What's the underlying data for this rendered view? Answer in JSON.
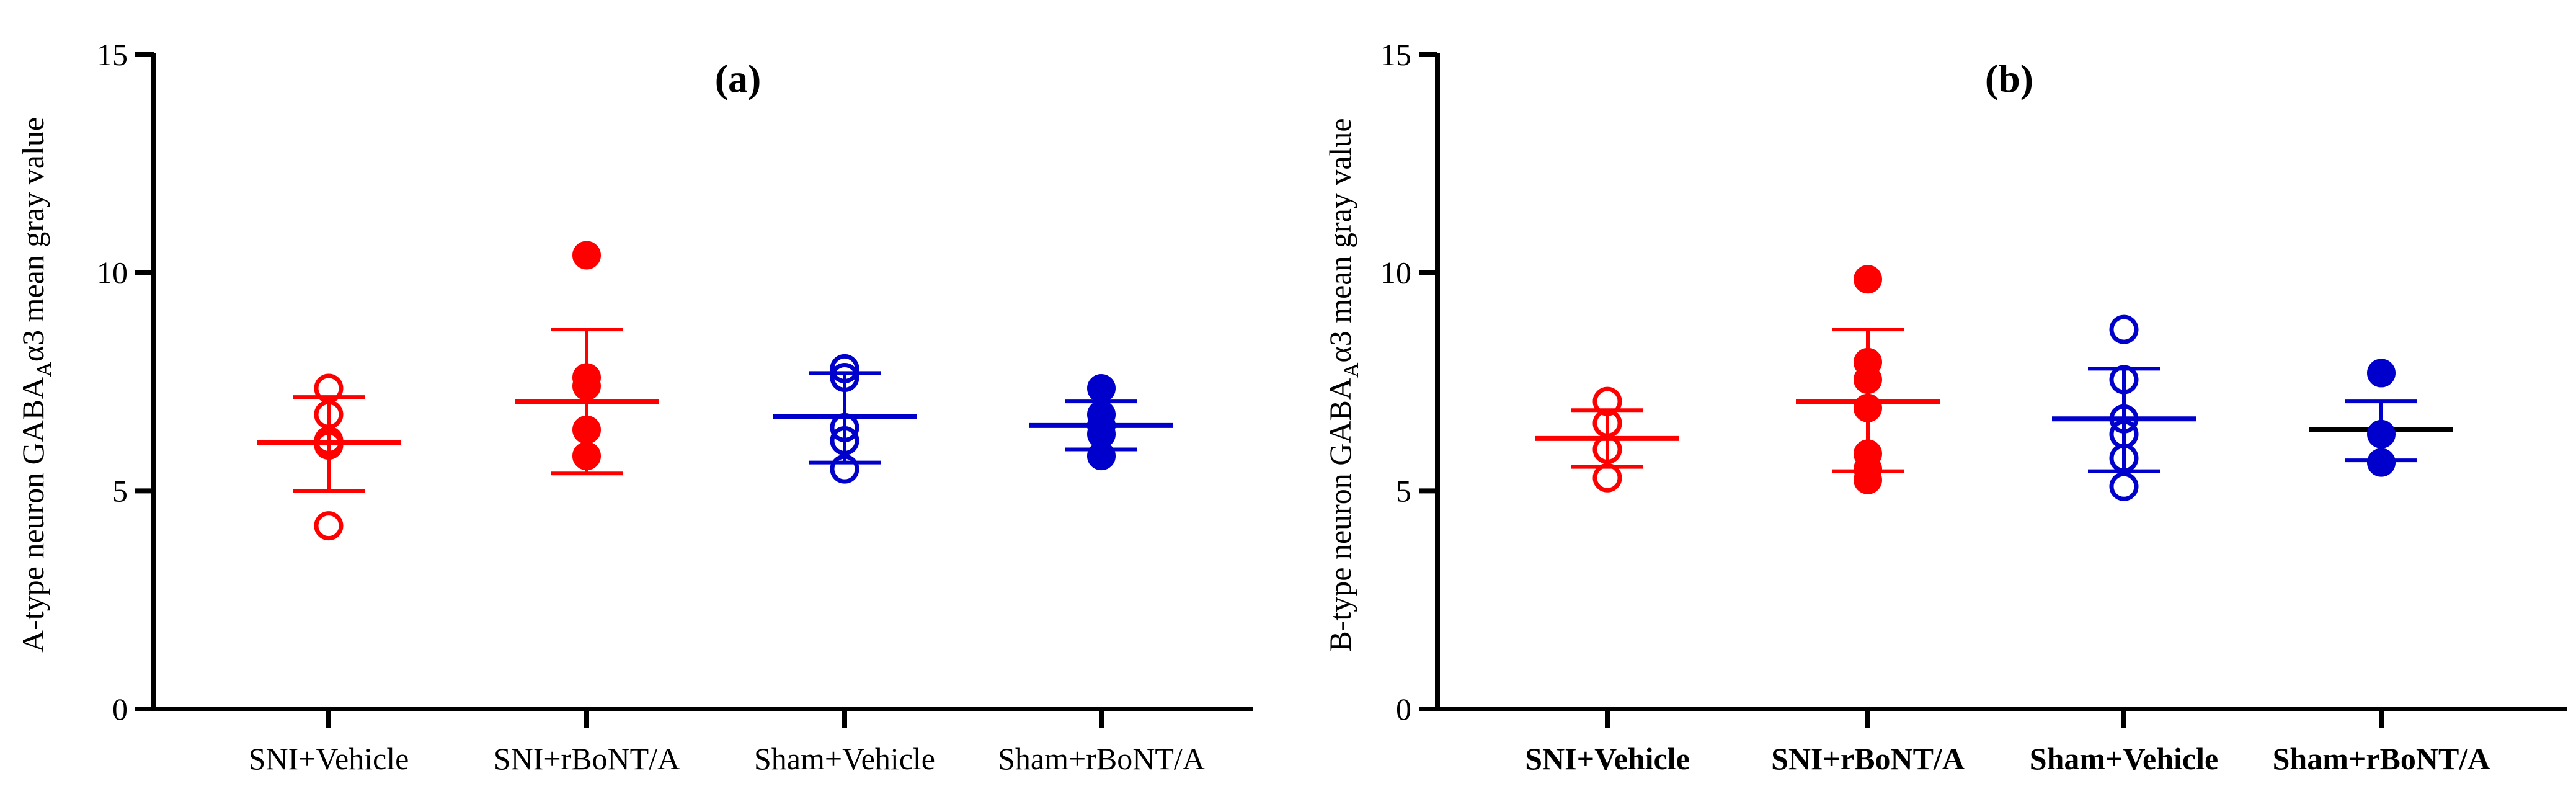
{
  "chart_data": [
    {
      "type": "scatter",
      "title": "(a)",
      "ylabel_parts": [
        "A-type neuron GABA",
        "A",
        "α3 mean gray value"
      ],
      "ylim": [
        0,
        15
      ],
      "yticks": [
        "0",
        "5",
        "10",
        "15"
      ],
      "categories": [
        "SNI+Vehicle",
        "SNI+rBoNT/A",
        "Sham+Vehicle",
        "Sham+rBoNT/A"
      ],
      "category_label_weight": "normal",
      "series": [
        {
          "name": "SNI+Vehicle",
          "color": "#ff0000",
          "filled": false,
          "mean": 6.1,
          "sd_upper": 7.15,
          "sd_lower": 5.0,
          "points": [
            4.2,
            6.05,
            6.15,
            6.75,
            7.35
          ]
        },
        {
          "name": "SNI+rBoNT/A",
          "color": "#ff0000",
          "filled": true,
          "mean": 7.05,
          "sd_upper": 8.7,
          "sd_lower": 5.4,
          "points": [
            5.8,
            6.4,
            7.4,
            7.6,
            10.4
          ]
        },
        {
          "name": "Sham+Vehicle",
          "color": "#0000cc",
          "filled": false,
          "mean": 6.7,
          "sd_upper": 7.7,
          "sd_lower": 5.65,
          "points": [
            5.5,
            6.15,
            6.45,
            7.6,
            7.8
          ]
        },
        {
          "name": "Sham+rBoNT/A",
          "color": "#0000cc",
          "filled": true,
          "mean": 6.5,
          "sd_upper": 7.05,
          "sd_lower": 5.95,
          "points": [
            5.8,
            6.3,
            6.5,
            6.75,
            7.35
          ]
        }
      ]
    },
    {
      "type": "scatter",
      "title": "(b)",
      "ylabel_parts": [
        "B-type neuron GABA",
        "A",
        "α3 mean gray value"
      ],
      "ylim": [
        0,
        15
      ],
      "yticks": [
        "0",
        "5",
        "10",
        "15"
      ],
      "categories": [
        "SNI+Vehicle",
        "SNI+rBoNT/A",
        "Sham+Vehicle",
        "Sham+rBoNT/A"
      ],
      "category_label_weight": "bold",
      "series": [
        {
          "name": "SNI+Vehicle",
          "color": "#ff0000",
          "filled": false,
          "mean": 6.2,
          "sd_upper": 6.85,
          "sd_lower": 5.55,
          "points": [
            5.3,
            5.95,
            6.55,
            7.05
          ]
        },
        {
          "name": "SNI+rBoNT/A",
          "color": "#ff0000",
          "filled": true,
          "mean": 7.05,
          "sd_upper": 8.7,
          "sd_lower": 5.45,
          "points": [
            5.25,
            5.5,
            5.85,
            6.9,
            7.55,
            7.95,
            9.85
          ]
        },
        {
          "name": "Sham+Vehicle",
          "color": "#0000cc",
          "filled": false,
          "mean": 6.65,
          "sd_upper": 7.8,
          "sd_lower": 5.45,
          "points": [
            5.1,
            5.75,
            6.3,
            6.65,
            7.55,
            8.7
          ]
        },
        {
          "name": "Sham+rBoNT/A",
          "color": "#0000cc",
          "filled": true,
          "mean": 6.4,
          "sd_upper": 7.05,
          "sd_lower": 5.7,
          "points": [
            5.65,
            6.3,
            7.7
          ]
        }
      ]
    }
  ]
}
